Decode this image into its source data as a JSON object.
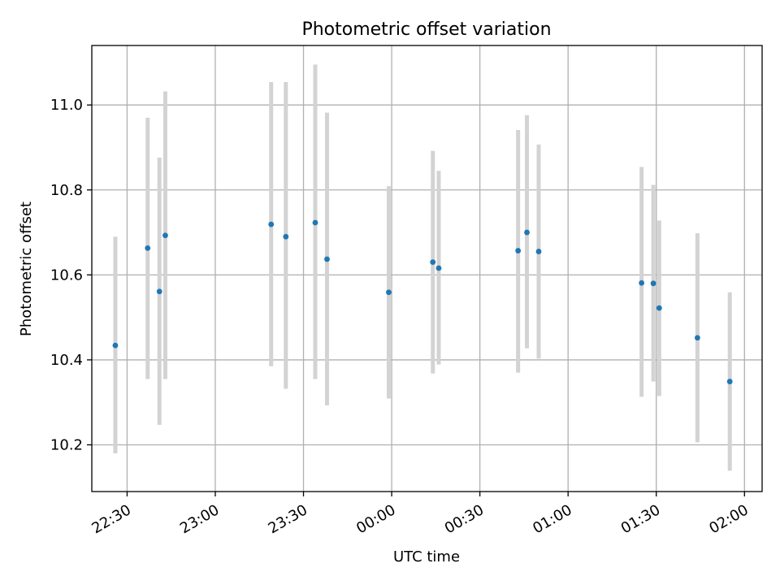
{
  "chart_data": {
    "type": "scatter",
    "title": "Photometric offset variation",
    "xlabel": "UTC time",
    "ylabel": "Photometric offset",
    "x_axis": {
      "scale": "time",
      "range": [
        "22:18",
        "02:06"
      ],
      "ticks": [
        "22:30",
        "23:00",
        "23:30",
        "00:00",
        "00:30",
        "01:00",
        "01:30",
        "02:00"
      ]
    },
    "y_axis": {
      "range": [
        10.09,
        11.14
      ],
      "ticks": [
        "10.2",
        "10.4",
        "10.6",
        "10.8",
        "11.0"
      ]
    },
    "grid": true,
    "colors": {
      "point": "#1f77b4",
      "errorbar": "#d3d3d3",
      "grid": "#b0b0b0"
    },
    "points": [
      {
        "x": "22:26",
        "y": 10.434,
        "yerr_low": 10.18,
        "yerr_high": 10.69
      },
      {
        "x": "22:37",
        "y": 10.663,
        "yerr_low": 10.355,
        "yerr_high": 10.97
      },
      {
        "x": "22:41",
        "y": 10.561,
        "yerr_low": 10.247,
        "yerr_high": 10.876
      },
      {
        "x": "22:43",
        "y": 10.693,
        "yerr_low": 10.355,
        "yerr_high": 11.032
      },
      {
        "x": "23:19",
        "y": 10.719,
        "yerr_low": 10.385,
        "yerr_high": 11.054
      },
      {
        "x": "23:24",
        "y": 10.69,
        "yerr_low": 10.332,
        "yerr_high": 11.054
      },
      {
        "x": "23:34",
        "y": 10.723,
        "yerr_low": 10.355,
        "yerr_high": 11.095
      },
      {
        "x": "23:38",
        "y": 10.637,
        "yerr_low": 10.293,
        "yerr_high": 10.982
      },
      {
        "x": "23:59",
        "y": 10.559,
        "yerr_low": 10.309,
        "yerr_high": 10.809
      },
      {
        "x": "00:14",
        "y": 10.63,
        "yerr_low": 10.368,
        "yerr_high": 10.892
      },
      {
        "x": "00:16",
        "y": 10.616,
        "yerr_low": 10.389,
        "yerr_high": 10.845
      },
      {
        "x": "00:43",
        "y": 10.657,
        "yerr_low": 10.37,
        "yerr_high": 10.941
      },
      {
        "x": "00:46",
        "y": 10.7,
        "yerr_low": 10.427,
        "yerr_high": 10.976
      },
      {
        "x": "00:50",
        "y": 10.655,
        "yerr_low": 10.403,
        "yerr_high": 10.907
      },
      {
        "x": "01:25",
        "y": 10.581,
        "yerr_low": 10.313,
        "yerr_high": 10.854
      },
      {
        "x": "01:29",
        "y": 10.58,
        "yerr_low": 10.349,
        "yerr_high": 10.812
      },
      {
        "x": "01:31",
        "y": 10.522,
        "yerr_low": 10.315,
        "yerr_high": 10.728
      },
      {
        "x": "01:44",
        "y": 10.452,
        "yerr_low": 10.206,
        "yerr_high": 10.698
      },
      {
        "x": "01:55",
        "y": 10.349,
        "yerr_low": 10.139,
        "yerr_high": 10.559
      }
    ]
  }
}
